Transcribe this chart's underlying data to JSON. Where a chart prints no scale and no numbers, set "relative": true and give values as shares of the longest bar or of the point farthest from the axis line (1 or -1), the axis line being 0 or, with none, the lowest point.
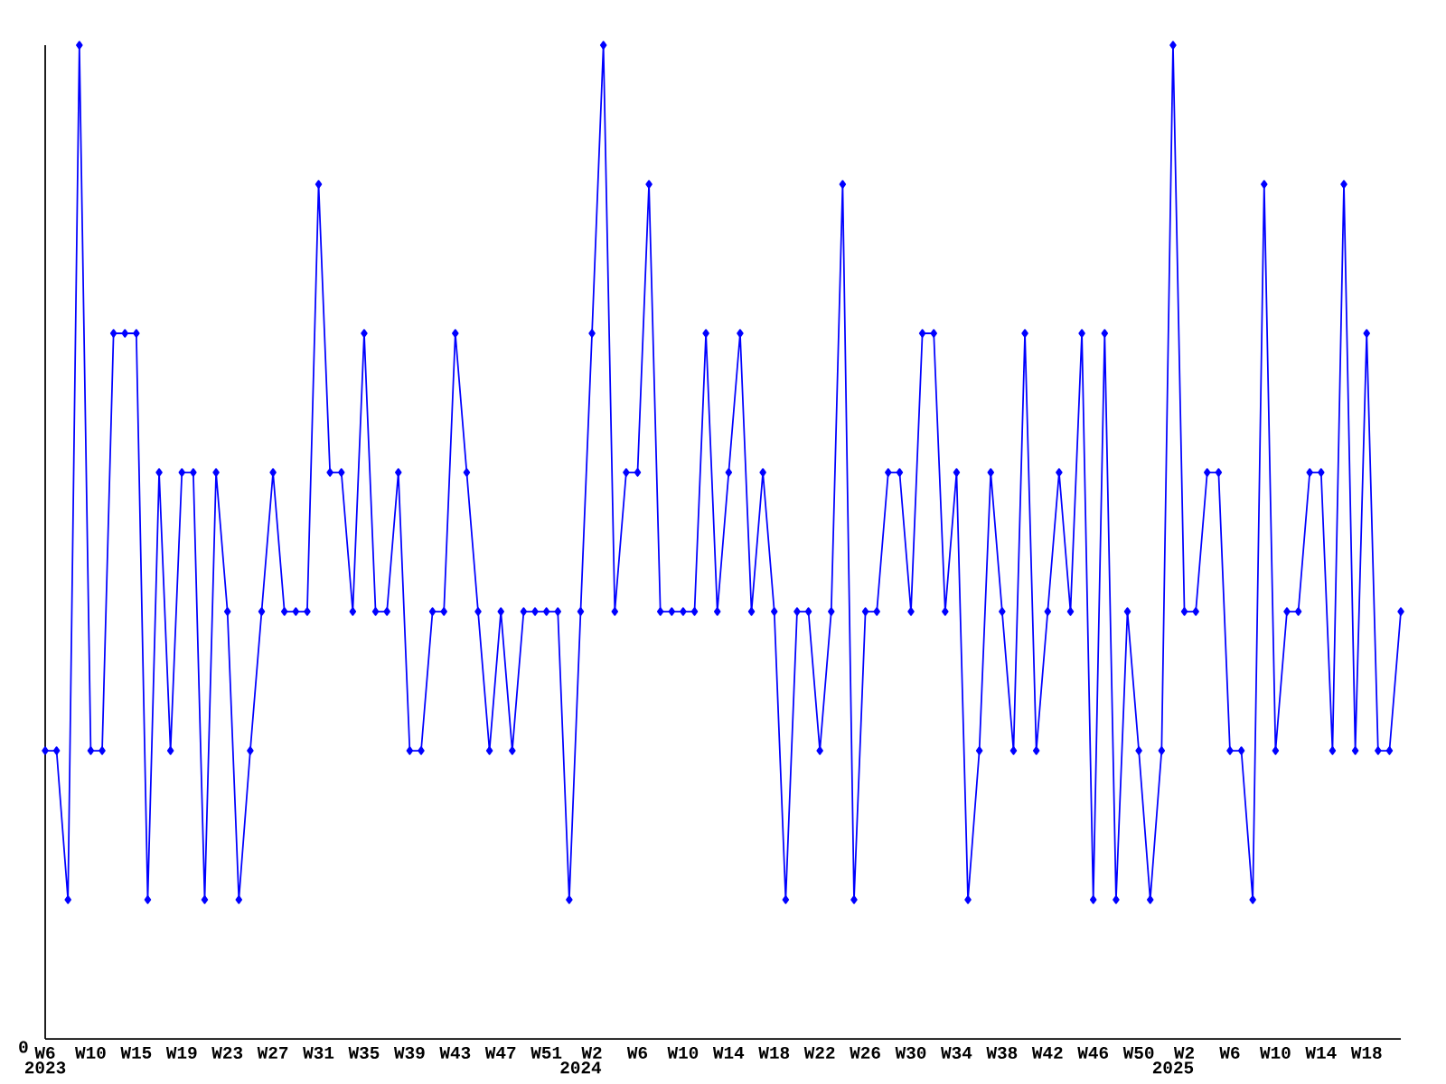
{
  "chart_data": {
    "type": "line",
    "relative": true,
    "color": "#0000ff",
    "marker": "diamond",
    "line_style": "solid",
    "xlim": [
      "2023-02-06",
      "2025-05-19"
    ],
    "x": [
      "2023-02-06",
      "2023-02-13",
      "2023-02-20",
      "2023-02-27",
      "2023-03-06",
      "2023-03-13",
      "2023-03-20",
      "2023-03-27",
      "2023-04-03",
      "2023-04-10",
      "2023-04-17",
      "2023-04-24",
      "2023-05-01",
      "2023-05-08",
      "2023-05-15",
      "2023-05-22",
      "2023-05-29",
      "2023-06-05",
      "2023-06-12",
      "2023-06-19",
      "2023-06-26",
      "2023-07-03",
      "2023-07-10",
      "2023-07-17",
      "2023-07-24",
      "2023-07-31",
      "2023-08-07",
      "2023-08-14",
      "2023-08-21",
      "2023-08-28",
      "2023-09-04",
      "2023-09-11",
      "2023-09-18",
      "2023-09-25",
      "2023-10-02",
      "2023-10-09",
      "2023-10-16",
      "2023-10-23",
      "2023-10-30",
      "2023-11-06",
      "2023-11-13",
      "2023-11-20",
      "2023-11-27",
      "2023-12-04",
      "2023-12-11",
      "2023-12-18",
      "2023-12-25",
      "2024-01-01",
      "2024-01-08",
      "2024-01-15",
      "2024-01-22",
      "2024-01-29",
      "2024-02-05",
      "2024-02-12",
      "2024-02-19",
      "2024-02-26",
      "2024-03-04",
      "2024-03-11",
      "2024-03-18",
      "2024-03-25",
      "2024-04-01",
      "2024-04-08",
      "2024-04-15",
      "2024-04-22",
      "2024-04-29",
      "2024-05-06",
      "2024-05-13",
      "2024-05-20",
      "2024-05-27",
      "2024-06-03",
      "2024-06-10",
      "2024-06-17",
      "2024-06-24",
      "2024-07-01",
      "2024-07-08",
      "2024-07-15",
      "2024-07-22",
      "2024-07-29",
      "2024-08-05",
      "2024-08-12",
      "2024-08-19",
      "2024-08-26",
      "2024-09-02",
      "2024-09-09",
      "2024-09-16",
      "2024-09-23",
      "2024-09-30",
      "2024-10-07",
      "2024-10-14",
      "2024-10-21",
      "2024-10-28",
      "2024-11-04",
      "2024-11-11",
      "2024-11-18",
      "2024-11-25",
      "2024-12-02",
      "2024-12-09",
      "2024-12-16",
      "2024-12-23",
      "2024-12-30",
      "2025-01-06",
      "2025-01-13",
      "2025-01-20",
      "2025-01-27",
      "2025-02-03",
      "2025-02-10",
      "2025-02-17",
      "2025-02-24",
      "2025-03-03",
      "2025-03-10",
      "2025-03-17",
      "2025-03-24",
      "2025-03-31",
      "2025-04-07",
      "2025-04-14",
      "2025-04-21",
      "2025-04-28",
      "2025-05-05",
      "2025-05-12",
      "2025-05-19"
    ],
    "values": [
      0.29,
      0.29,
      0.14,
      1,
      0.29,
      0.29,
      0.71,
      0.71,
      0.71,
      0.14,
      0.57,
      0.29,
      0.57,
      0.57,
      0.14,
      0.57,
      0.43,
      0.14,
      0.29,
      0.43,
      0.57,
      0.43,
      0.43,
      0.43,
      0.86,
      0.57,
      0.57,
      0.43,
      0.71,
      0.43,
      0.43,
      0.57,
      0.29,
      0.29,
      0.43,
      0.43,
      0.71,
      0.57,
      0.43,
      0.29,
      0.43,
      0.29,
      0.43,
      0.43,
      0.43,
      0.43,
      0.14,
      0.43,
      0.71,
      1,
      0.43,
      0.57,
      0.57,
      0.86,
      0.43,
      0.43,
      0.43,
      0.43,
      0.71,
      0.43,
      0.57,
      0.71,
      0.43,
      0.57,
      0.43,
      0.14,
      0.43,
      0.43,
      0.29,
      0.43,
      0.86,
      0.14,
      0.43,
      0.43,
      0.57,
      0.57,
      0.43,
      0.71,
      0.71,
      0.43,
      0.57,
      0.14,
      0.29,
      0.57,
      0.43,
      0.29,
      0.71,
      0.29,
      0.43,
      0.57,
      0.43,
      0.71,
      0.14,
      0.71,
      0.14,
      0.43,
      0.29,
      0.14,
      0.29,
      1,
      0.43,
      0.43,
      0.57,
      0.57,
      0.29,
      0.29,
      0.14,
      0.86,
      0.29,
      0.43,
      0.43,
      0.57,
      0.57,
      0.29,
      0.86,
      0.29,
      0.71,
      0.29,
      0.29,
      0.43
    ],
    "xticks": [
      {
        "value": "2023-02-06",
        "label": "W6"
      },
      {
        "value": "2023-03-06",
        "label": "W10"
      },
      {
        "value": "2023-04-03",
        "label": "W15"
      },
      {
        "value": "2023-05-01",
        "label": "W19"
      },
      {
        "value": "2023-05-29",
        "label": "W23"
      },
      {
        "value": "2023-06-26",
        "label": "W27"
      },
      {
        "value": "2023-07-24",
        "label": "W31"
      },
      {
        "value": "2023-08-21",
        "label": "W35"
      },
      {
        "value": "2023-09-18",
        "label": "W39"
      },
      {
        "value": "2023-10-16",
        "label": "W43"
      },
      {
        "value": "2023-11-13",
        "label": "W47"
      },
      {
        "value": "2023-12-11",
        "label": "W51"
      },
      {
        "value": "2024-01-08",
        "label": "W2"
      },
      {
        "value": "2024-02-05",
        "label": "W6"
      },
      {
        "value": "2024-03-04",
        "label": "W10"
      },
      {
        "value": "2024-04-01",
        "label": "W14"
      },
      {
        "value": "2024-04-29",
        "label": "W18"
      },
      {
        "value": "2024-05-27",
        "label": "W22"
      },
      {
        "value": "2024-06-24",
        "label": "W26"
      },
      {
        "value": "2024-07-22",
        "label": "W30"
      },
      {
        "value": "2024-08-19",
        "label": "W34"
      },
      {
        "value": "2024-09-16",
        "label": "W38"
      },
      {
        "value": "2024-10-14",
        "label": "W42"
      },
      {
        "value": "2024-11-11",
        "label": "W46"
      },
      {
        "value": "2024-12-09",
        "label": "W50"
      },
      {
        "value": "2025-01-06",
        "label": "W2"
      },
      {
        "value": "2025-02-03",
        "label": "W6"
      },
      {
        "value": "2025-03-03",
        "label": "W10"
      },
      {
        "value": "2025-03-31",
        "label": "W14"
      },
      {
        "value": "2025-04-28",
        "label": "W18"
      }
    ],
    "grid": false,
    "annotations": [
      "0",
      "2023",
      "2024",
      "2025"
    ]
  }
}
